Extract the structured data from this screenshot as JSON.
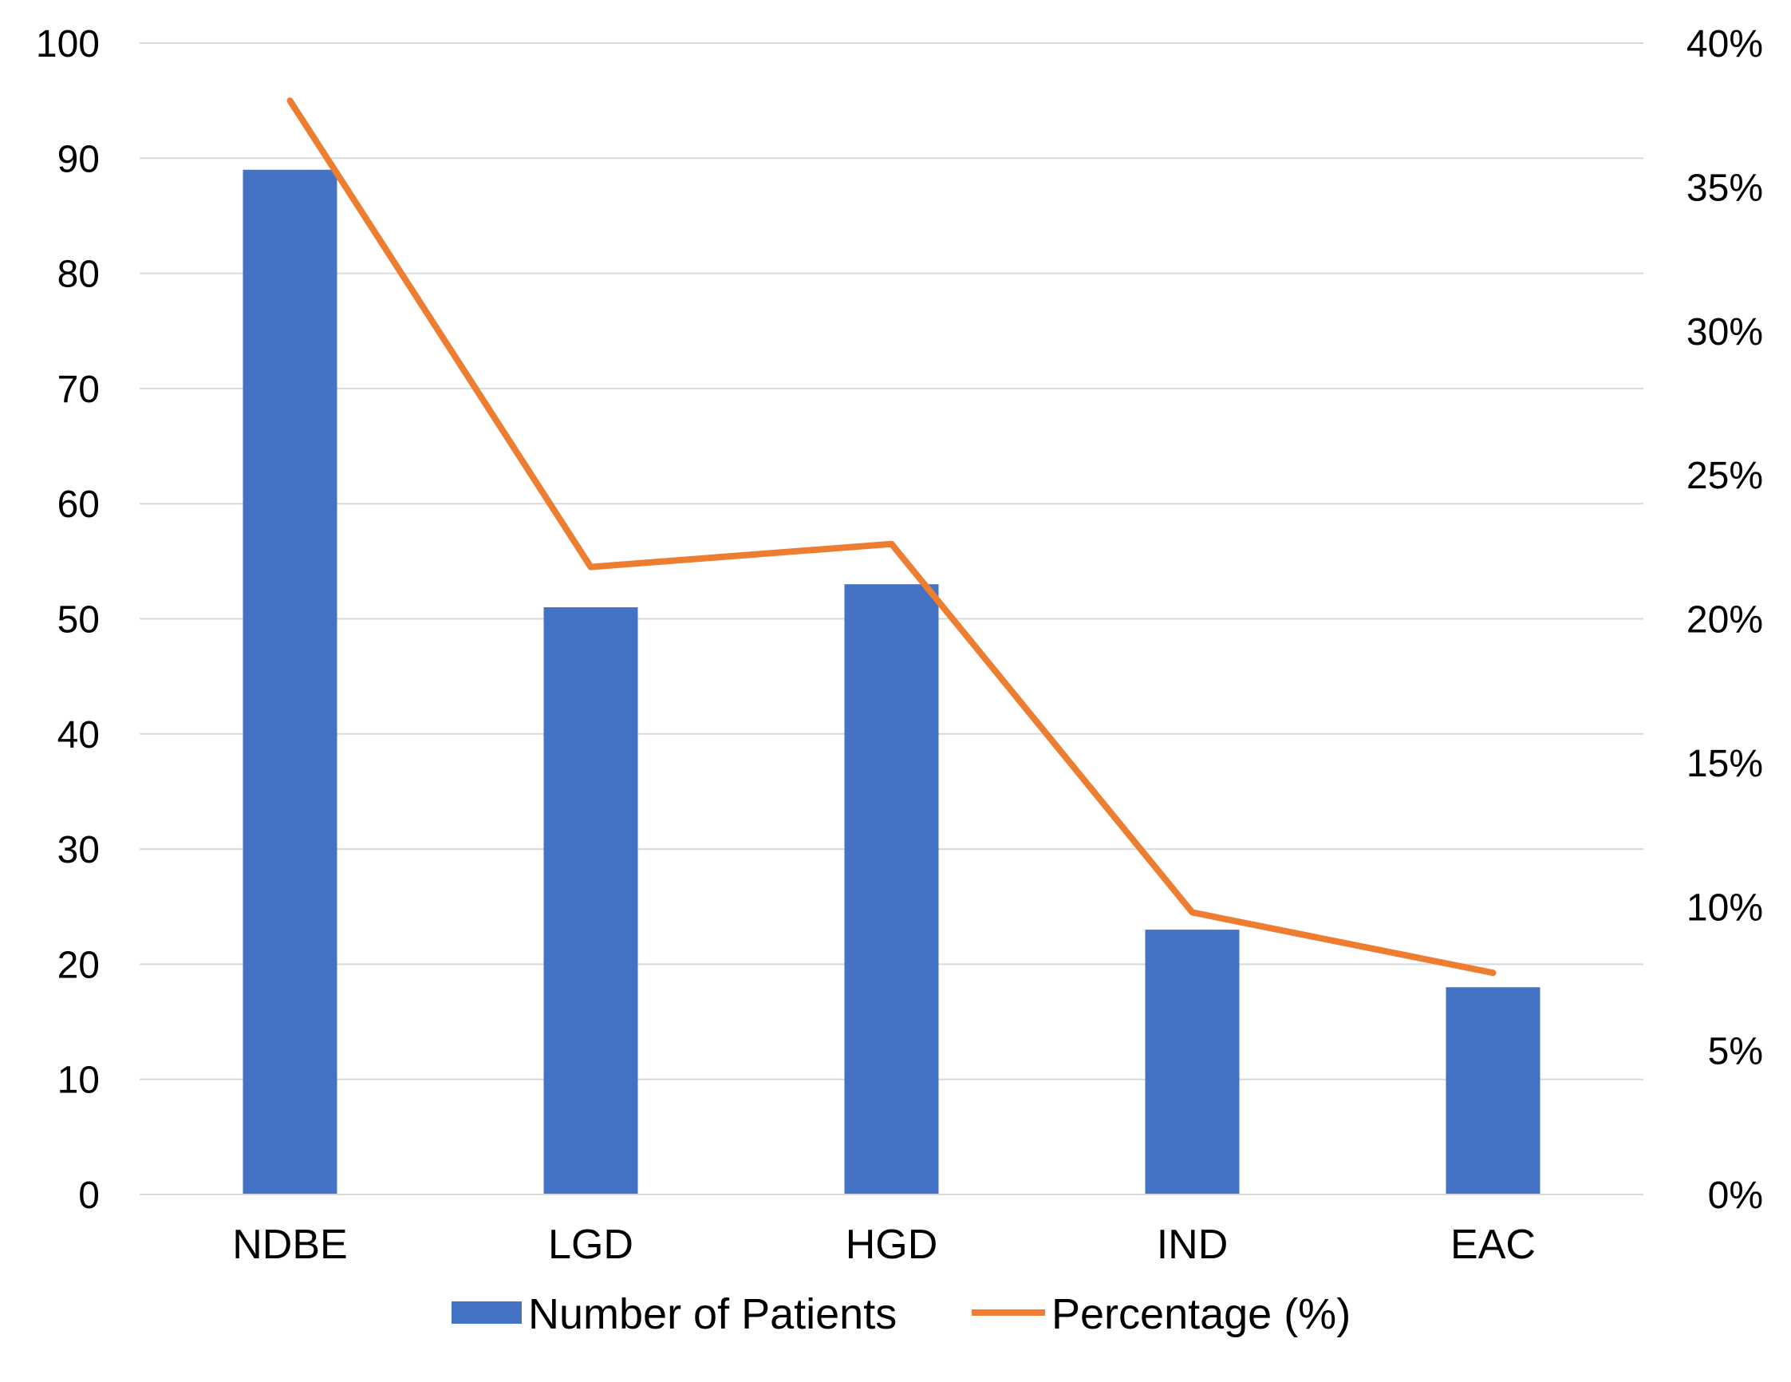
{
  "chart_data": {
    "type": "bar",
    "categories": [
      "NDBE",
      "LGD",
      "HGD",
      "IND",
      "EAC"
    ],
    "series": [
      {
        "name": "Number of Patients",
        "type": "bar",
        "axis": "left",
        "color": "#4472C4",
        "values": [
          89,
          51,
          53,
          23,
          18
        ]
      },
      {
        "name": "Percentage (%)",
        "type": "line",
        "axis": "right",
        "color": "#ED7D31",
        "values": [
          38.0,
          21.8,
          22.6,
          9.8,
          7.7
        ]
      }
    ],
    "left_axis": {
      "min": 0,
      "max": 100,
      "ticks": [
        0,
        10,
        20,
        30,
        40,
        50,
        60,
        70,
        80,
        90,
        100
      ],
      "tick_labels": [
        "0",
        "10",
        "20",
        "30",
        "40",
        "50",
        "60",
        "70",
        "80",
        "90",
        "100"
      ]
    },
    "right_axis": {
      "min": 0,
      "max": 40,
      "ticks": [
        0,
        5,
        10,
        15,
        20,
        25,
        30,
        35,
        40
      ],
      "tick_labels": [
        "0%",
        "5%",
        "10%",
        "15%",
        "20%",
        "25%",
        "30%",
        "35%",
        "40%"
      ]
    },
    "grid": true,
    "gridline_color": "#D9D9D9",
    "legend_position": "bottom",
    "title": "",
    "xlabel": "",
    "ylabel": ""
  }
}
